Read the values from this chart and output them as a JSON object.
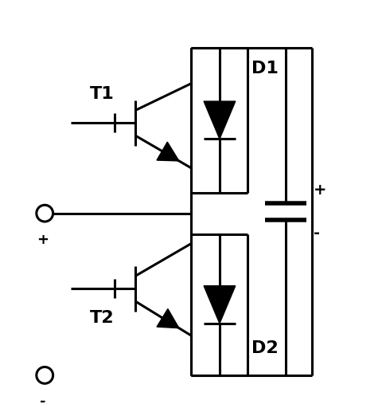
{
  "fig_width": 4.81,
  "fig_height": 5.17,
  "dpi": 100,
  "lw": 2.2,
  "T1_label": "T1",
  "T2_label": "T2",
  "D1_label": "D1",
  "D2_label": "D2",
  "plus_label": "+",
  "minus_label": "-",
  "cap_plus": "+",
  "cap_minus": "-",
  "xlim": [
    0,
    10
  ],
  "ylim": [
    0,
    10.75
  ]
}
